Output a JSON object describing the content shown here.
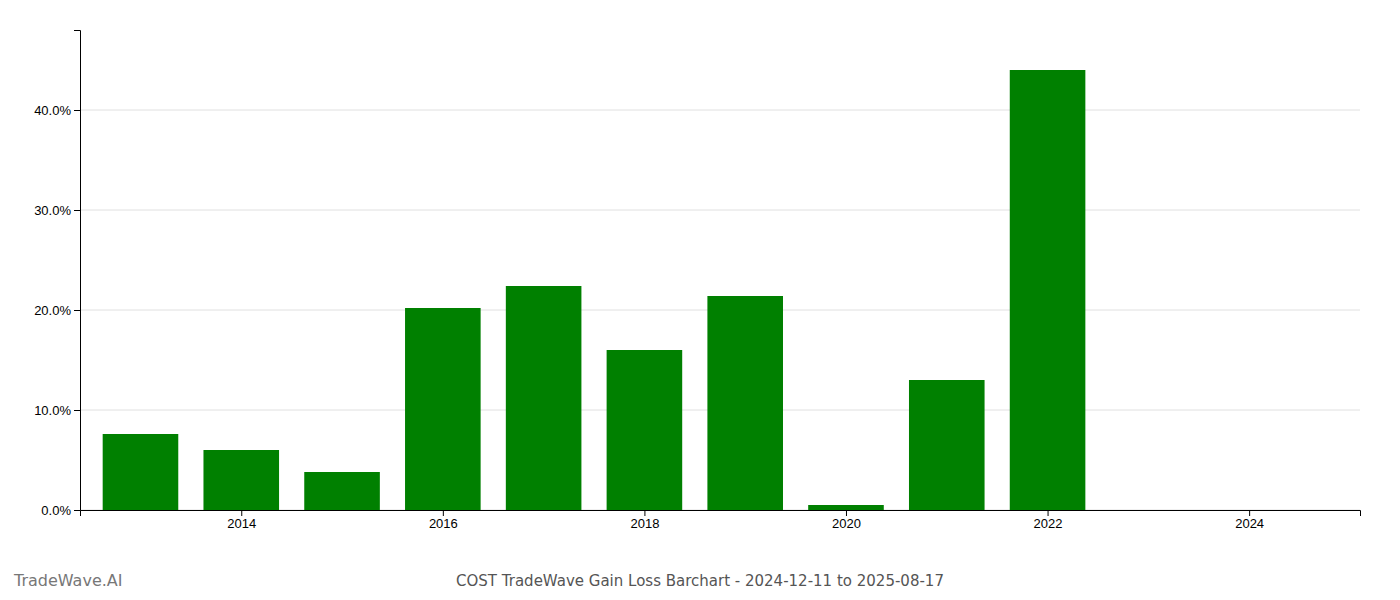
{
  "chart_data": {
    "type": "bar",
    "title": "COST TradeWave Gain Loss Barchart - 2024-12-11 to 2025-08-17",
    "annotations": [
      "TradeWave.AI"
    ],
    "x": [
      2013,
      2014,
      2015,
      2016,
      2017,
      2018,
      2019,
      2020,
      2021,
      2022,
      2023,
      2024
    ],
    "values": [
      0.076,
      0.06,
      0.038,
      0.202,
      0.224,
      0.16,
      0.214,
      0.005,
      0.13,
      0.44,
      0.0,
      0.0
    ],
    "color": "#008000",
    "xlim": [
      2012.4,
      2025.1
    ],
    "xticks": [
      2014,
      2016,
      2018,
      2020,
      2022,
      2024
    ],
    "ylim": [
      0,
      0.48
    ],
    "yticks": [
      {
        "value": 0.0,
        "label": "0.0%"
      },
      {
        "value": 0.1,
        "label": "10.0%"
      },
      {
        "value": 0.2,
        "label": "20.0%"
      },
      {
        "value": 0.3,
        "label": "30.0%"
      },
      {
        "value": 0.4,
        "label": "40.0%"
      }
    ],
    "grid": true
  }
}
